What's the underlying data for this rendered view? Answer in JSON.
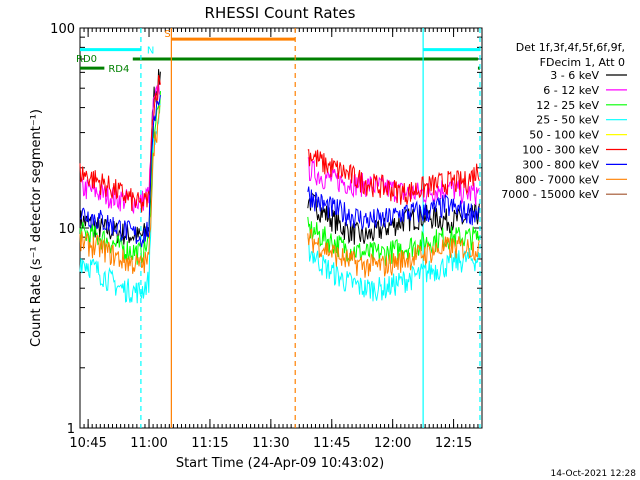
{
  "chart_data": {
    "type": "line",
    "title": "RHESSI Count Rates",
    "xlabel": "Start Time (24-Apr-09 10:43:02)",
    "ylabel": "Count Rate (s⁻¹ detector segment⁻¹)",
    "yscale": "log",
    "ylim": [
      1,
      100
    ],
    "xlim_minutes_since_1043": [
      0,
      99
    ],
    "x_ticks": [
      {
        "label": "10:45",
        "t": 2
      },
      {
        "label": "11:00",
        "t": 17
      },
      {
        "label": "11:15",
        "t": 32
      },
      {
        "label": "11:30",
        "t": 47
      },
      {
        "label": "11:45",
        "t": 62
      },
      {
        "label": "12:00",
        "t": 77
      },
      {
        "label": "12:15",
        "t": 92
      }
    ],
    "y_ticks": [
      {
        "label": "1",
        "v": 1
      },
      {
        "label": "10",
        "v": 10
      },
      {
        "label": "100",
        "v": 100
      }
    ],
    "legend_header": [
      "Det 1f,3f,4f,5f,6f,9f,",
      "FDecim 1, Att 0"
    ],
    "legend_placement": "right",
    "series": [
      {
        "name": "3 - 6 keV",
        "color": "#000000",
        "x": [
          0,
          5,
          10,
          15,
          17,
          18,
          20,
          21,
          53,
          56,
          60,
          65,
          70,
          75,
          80,
          85,
          90,
          95,
          98.5
        ],
        "y": [
          11,
          10,
          9.5,
          9,
          10,
          45,
          60,
          null,
          null,
          14,
          12,
          10,
          9,
          10,
          11,
          11.5,
          11,
          11,
          12
        ]
      },
      {
        "name": "6 - 12 keV",
        "color": "#ff00ff",
        "x": [
          0,
          5,
          10,
          15,
          17,
          18,
          20,
          21,
          53,
          56,
          60,
          65,
          70,
          75,
          80,
          85,
          90,
          95,
          98.5
        ],
        "y": [
          16,
          15,
          14,
          13.5,
          15,
          40,
          55,
          null,
          null,
          20,
          18,
          17,
          16.5,
          16,
          15,
          15,
          16,
          15,
          15
        ]
      },
      {
        "name": "12 - 25 keV",
        "color": "#00ff00",
        "x": [
          0,
          5,
          10,
          15,
          17,
          18,
          20,
          21,
          53,
          56,
          60,
          65,
          70,
          75,
          80,
          85,
          90,
          95,
          98.5
        ],
        "y": [
          9.5,
          9,
          8,
          7.5,
          8.5,
          30,
          45,
          null,
          null,
          10,
          9,
          8,
          7.5,
          7.5,
          8,
          8.5,
          9,
          9,
          9
        ]
      },
      {
        "name": "25 - 50 keV",
        "color": "#00ffff",
        "x": [
          0,
          5,
          10,
          15,
          17,
          18,
          20,
          21,
          53,
          56,
          60,
          65,
          70,
          75,
          80,
          85,
          90,
          95,
          98.5
        ],
        "y": [
          7,
          6,
          5,
          4.8,
          5.5,
          25,
          40,
          null,
          null,
          8,
          6.5,
          5.5,
          5,
          5,
          5.5,
          6,
          6.5,
          7,
          7
        ]
      },
      {
        "name": "50 - 100 keV",
        "color": "#ffff00",
        "x": [],
        "y": []
      },
      {
        "name": "100 - 300 keV",
        "color": "#ff0000",
        "x": [
          0,
          5,
          10,
          15,
          17,
          18,
          20,
          21,
          53,
          56,
          60,
          65,
          70,
          75,
          80,
          85,
          90,
          95,
          98.5
        ],
        "y": [
          19,
          17,
          15,
          13,
          14,
          40,
          60,
          null,
          null,
          24,
          21,
          19,
          17,
          16,
          15,
          16,
          17,
          17,
          20
        ]
      },
      {
        "name": "300 - 800 keV",
        "color": "#0000ff",
        "x": [
          0,
          5,
          10,
          15,
          17,
          18,
          20,
          21,
          53,
          56,
          60,
          65,
          70,
          75,
          80,
          85,
          90,
          95,
          98.5
        ],
        "y": [
          12,
          11,
          10,
          9,
          10,
          35,
          50,
          null,
          null,
          15,
          13,
          12,
          11,
          11,
          12,
          12,
          13,
          12,
          12
        ]
      },
      {
        "name": "800 - 7000 keV",
        "color": "#ff8000",
        "x": [
          0,
          5,
          10,
          15,
          17,
          18,
          20,
          21,
          53,
          56,
          60,
          65,
          70,
          75,
          80,
          85,
          90,
          95,
          98.5
        ],
        "y": [
          8.5,
          8,
          7,
          6.5,
          7,
          25,
          40,
          null,
          null,
          9,
          8,
          7,
          6.5,
          6.5,
          7,
          7.5,
          8,
          8,
          8
        ]
      },
      {
        "name": "7000 - 15000 keV",
        "color": "#a0522d",
        "x": [],
        "y": []
      }
    ],
    "annotations": [
      {
        "text": "N",
        "color": "#00ffff"
      },
      {
        "text": "S",
        "color": "#ff8000"
      },
      {
        "text": "RD0",
        "color": "#008000"
      },
      {
        "text": "RD4",
        "color": "#008000"
      }
    ],
    "flag_bars": [
      {
        "label": "N",
        "color": "#00ffff",
        "level": 78,
        "ranges": [
          [
            0,
            15
          ],
          [
            84.5,
            98.5
          ]
        ]
      },
      {
        "label": "S",
        "color": "#ff8000",
        "level": 88,
        "ranges": [
          [
            22.5,
            53
          ]
        ]
      },
      {
        "label": "RD0",
        "color": "#008000",
        "level": 70,
        "ranges": [
          [
            13,
            98
          ]
        ]
      },
      {
        "label": "RD4",
        "color": "#008000",
        "level": 63,
        "ranges": [
          [
            0,
            6
          ],
          [
            98,
            98.5
          ]
        ]
      }
    ],
    "vertical_markers": [
      {
        "t": 15,
        "color": "#00ffff",
        "style": "dashed"
      },
      {
        "t": 84.5,
        "color": "#00ffff",
        "style": "solid"
      },
      {
        "t": 98.5,
        "color": "#00ffff",
        "style": "dashed"
      },
      {
        "t": 22.5,
        "color": "#ff8000",
        "style": "solid"
      },
      {
        "t": 53,
        "color": "#ff8000",
        "style": "dashed"
      }
    ],
    "footer": "14-Oct-2021 12:28"
  }
}
